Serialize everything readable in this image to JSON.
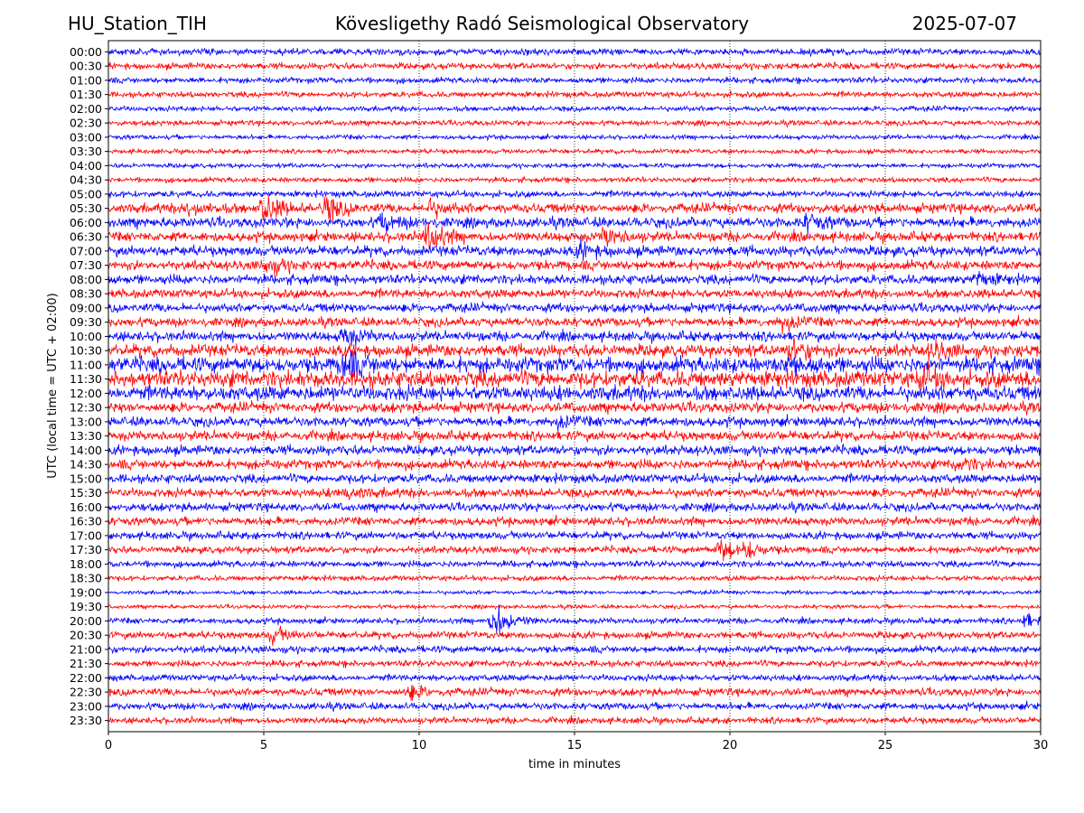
{
  "header": {
    "station": "HU_Station_TIH",
    "observatory": "Kövesligethy Radó Seismological Observatory",
    "date": "2025-07-07"
  },
  "chart_data": {
    "type": "line",
    "xlabel": "time in minutes",
    "ylabel": "UTC (local time = UTC + 02:00)",
    "xlim": [
      0,
      30
    ],
    "xticks": [
      "0",
      "5",
      "10",
      "15",
      "20",
      "25",
      "30"
    ],
    "grid": "vertical dotted lines at x ticks",
    "row_labels": [
      "00:00",
      "00:30",
      "01:00",
      "01:30",
      "02:00",
      "02:30",
      "03:00",
      "03:30",
      "04:00",
      "04:30",
      "05:00",
      "05:30",
      "06:00",
      "06:30",
      "07:00",
      "07:30",
      "08:00",
      "08:30",
      "09:00",
      "09:30",
      "10:00",
      "10:30",
      "11:00",
      "11:30",
      "12:00",
      "12:30",
      "13:00",
      "13:30",
      "14:00",
      "14:30",
      "15:00",
      "15:30",
      "16:00",
      "16:30",
      "17:00",
      "17:30",
      "18:00",
      "18:30",
      "19:00",
      "19:30",
      "20:00",
      "20:30",
      "21:00",
      "21:30",
      "22:00",
      "22:30",
      "23:00",
      "23:30"
    ],
    "colors": [
      "#0000ff",
      "#ff0000"
    ],
    "row_amplitude": [
      1.0,
      1.0,
      0.9,
      0.9,
      0.8,
      0.8,
      0.7,
      0.7,
      0.7,
      0.8,
      1.0,
      1.5,
      1.6,
      1.5,
      1.6,
      1.5,
      1.5,
      1.4,
      1.4,
      1.4,
      1.5,
      1.9,
      2.4,
      2.6,
      2.3,
      1.6,
      1.5,
      1.5,
      1.5,
      1.5,
      1.4,
      1.4,
      1.3,
      1.3,
      1.2,
      1.1,
      1.0,
      0.8,
      0.6,
      0.6,
      0.9,
      1.1,
      1.1,
      1.0,
      1.0,
      1.2,
      1.1,
      1.0
    ],
    "events": [
      {
        "row": "05:30",
        "minute": 5.0,
        "strength": 5.5
      },
      {
        "row": "05:30",
        "minute": 7.0,
        "strength": 4.5
      },
      {
        "row": "05:30",
        "minute": 2.6,
        "strength": 2.5
      },
      {
        "row": "05:30",
        "minute": 10.3,
        "strength": 3.0
      },
      {
        "row": "06:00",
        "minute": 8.8,
        "strength": 3.0
      },
      {
        "row": "06:00",
        "minute": 22.5,
        "strength": 3.0
      },
      {
        "row": "06:30",
        "minute": 10.3,
        "strength": 6.0
      },
      {
        "row": "06:30",
        "minute": 16.0,
        "strength": 3.5
      },
      {
        "row": "07:00",
        "minute": 15.2,
        "strength": 2.5
      },
      {
        "row": "07:30",
        "minute": 5.1,
        "strength": 3.0
      },
      {
        "row": "08:00",
        "minute": 28.0,
        "strength": 2.5
      },
      {
        "row": "09:30",
        "minute": 21.7,
        "strength": 3.0
      },
      {
        "row": "10:00",
        "minute": 7.6,
        "strength": 4.0
      },
      {
        "row": "10:30",
        "minute": 22.0,
        "strength": 4.0
      },
      {
        "row": "10:30",
        "minute": 26.5,
        "strength": 3.0
      },
      {
        "row": "11:00",
        "minute": 7.6,
        "strength": 5.5
      },
      {
        "row": "11:00",
        "minute": 22.0,
        "strength": 4.0
      },
      {
        "row": "11:30",
        "minute": 26.2,
        "strength": 3.5
      },
      {
        "row": "13:00",
        "minute": 14.5,
        "strength": 2.0
      },
      {
        "row": "14:30",
        "minute": 27.3,
        "strength": 2.5
      },
      {
        "row": "15:30",
        "minute": 7.6,
        "strength": 2.5
      },
      {
        "row": "17:30",
        "minute": 19.7,
        "strength": 4.0
      },
      {
        "row": "17:30",
        "minute": 20.5,
        "strength": 3.0
      },
      {
        "row": "20:00",
        "minute": 12.4,
        "strength": 7.5
      },
      {
        "row": "20:00",
        "minute": 29.5,
        "strength": 2.5
      },
      {
        "row": "20:30",
        "minute": 5.3,
        "strength": 3.0
      },
      {
        "row": "22:30",
        "minute": 9.7,
        "strength": 2.5
      }
    ]
  }
}
